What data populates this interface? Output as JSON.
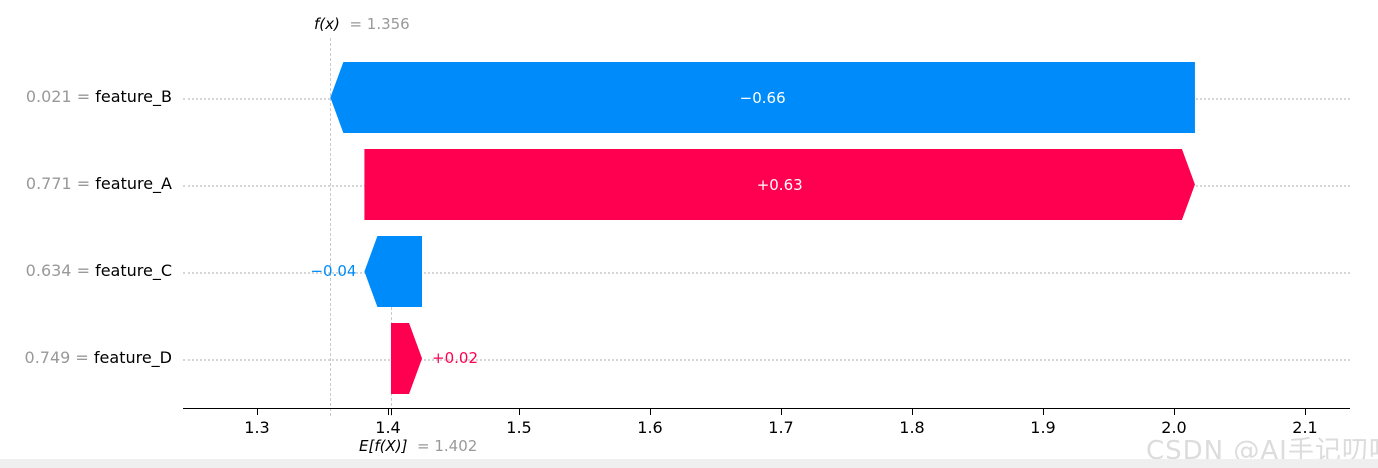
{
  "watermark": "CSDN @AI手记叨叨",
  "chart_data": {
    "type": "bar",
    "subtype": "shap-waterfall",
    "top_annotation": {
      "label": "f(x)",
      "value_text": "= 1.356",
      "value": 1.356
    },
    "base_annotation": {
      "label": "E[f(X)]",
      "value_text": "= 1.402",
      "value": 1.402
    },
    "features": [
      {
        "name": "feature_B",
        "data_value": "0.021",
        "shap": -0.66,
        "shap_label": "−0.66",
        "start": 2.016,
        "end": 1.356
      },
      {
        "name": "feature_A",
        "data_value": "0.771",
        "shap": 0.63,
        "shap_label": "+0.63",
        "start": 1.382,
        "end": 2.016
      },
      {
        "name": "feature_C",
        "data_value": "0.634",
        "shap": -0.04,
        "shap_label": "−0.04",
        "start": 1.426,
        "end": 1.382
      },
      {
        "name": "feature_D",
        "data_value": "0.749",
        "shap": 0.02,
        "shap_label": "+0.02",
        "start": 1.402,
        "end": 1.426
      }
    ],
    "x_ticks": [
      "1.3",
      "1.4",
      "1.5",
      "1.6",
      "1.7",
      "1.8",
      "1.9",
      "2.0",
      "2.1"
    ],
    "x_tick_values": [
      1.3,
      1.4,
      1.5,
      1.6,
      1.7,
      1.8,
      1.9,
      2.0,
      2.1
    ],
    "xlim": [
      1.244,
      2.134
    ],
    "grid": "horizontal-dotted",
    "legend": "none",
    "colors": {
      "positive": "#ff0051",
      "negative": "#008bfb",
      "bar_text": "#ffffff",
      "muted_text": "#999999",
      "grid_line": "#d6d6d6",
      "dashed_line": "#c9c9c9",
      "axis": "#000000",
      "watermark": "#dcdcdc",
      "bottom_strip": "#efefef"
    }
  }
}
